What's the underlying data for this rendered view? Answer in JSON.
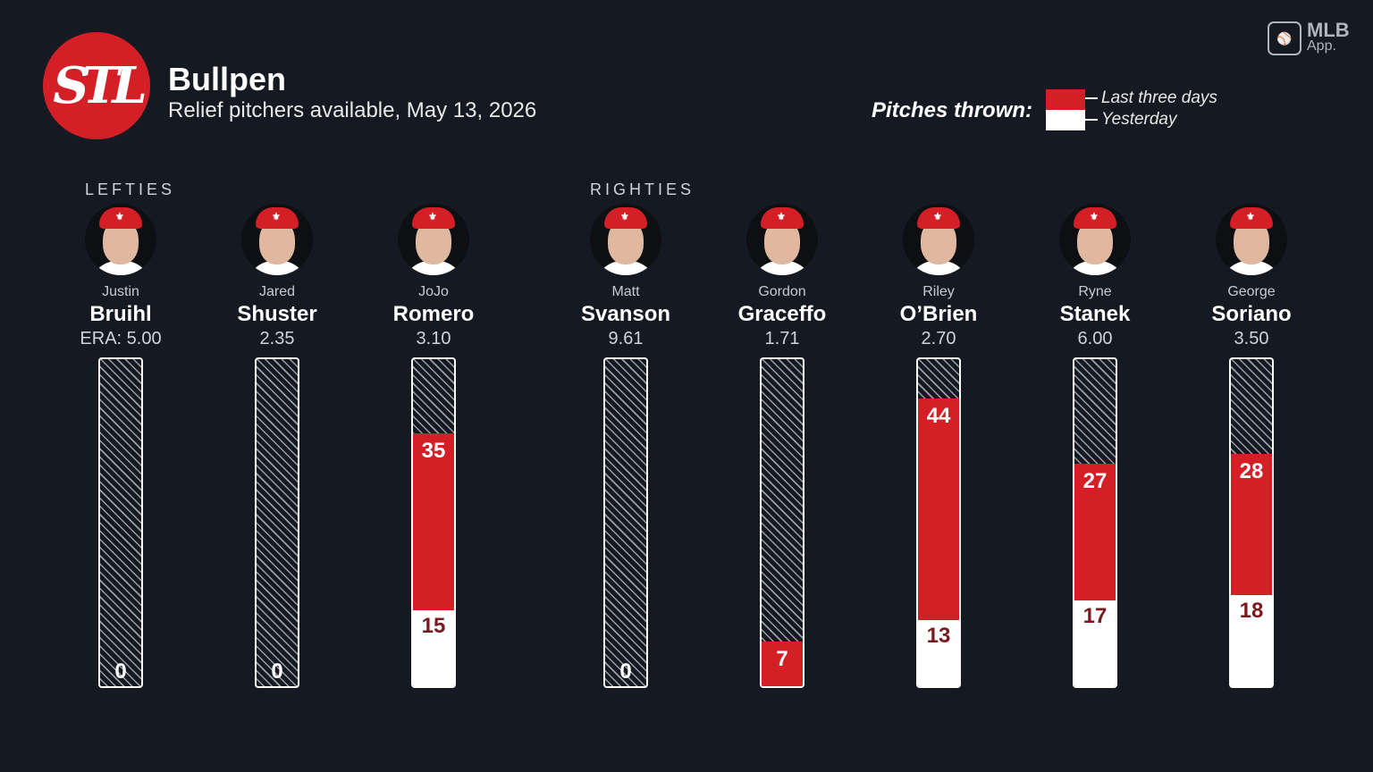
{
  "header": {
    "logo_text": "STL",
    "title": "Bullpen",
    "subtitle": "Relief pitchers available, May 13, 2026"
  },
  "badge": {
    "line1": "MLB",
    "line2": "App."
  },
  "legend": {
    "label": "Pitches thrown:",
    "items": [
      "Last three days",
      "Yesterday"
    ],
    "colors": {
      "last_three_days": "#d41f26",
      "yesterday": "#ffffff"
    }
  },
  "groups": {
    "lefties": "LEFTIES",
    "righties": "RIGHTIES"
  },
  "chart_data": {
    "type": "bar",
    "stacked": true,
    "categories": [
      "Justin Bruihl",
      "Jared Shuster",
      "JoJo Romero",
      "Matt Svanson",
      "Gordon Graceffo",
      "Riley O'Brien",
      "Ryne Stanek",
      "George Soriano"
    ],
    "series": [
      {
        "name": "Yesterday",
        "values": [
          0,
          0,
          15,
          0,
          0,
          13,
          17,
          18
        ]
      },
      {
        "name": "Last three days",
        "values": [
          0,
          0,
          35,
          0,
          7,
          44,
          27,
          28
        ]
      }
    ],
    "ylim": [
      0,
      64
    ]
  },
  "players": [
    {
      "first": "Justin",
      "last": "Bruihl",
      "era": "ERA: 5.00"
    },
    {
      "first": "Jared",
      "last": "Shuster",
      "era": "2.35"
    },
    {
      "first": "JoJo",
      "last": "Romero",
      "era": "3.10"
    },
    {
      "first": "Matt",
      "last": "Svanson",
      "era": "9.61"
    },
    {
      "first": "Gordon",
      "last": "Graceffo",
      "era": "1.71"
    },
    {
      "first": "Riley",
      "last": "O’Brien",
      "era": "2.70"
    },
    {
      "first": "Ryne",
      "last": "Stanek",
      "era": "6.00"
    },
    {
      "first": "George",
      "last": "Soriano",
      "era": "3.50"
    }
  ]
}
